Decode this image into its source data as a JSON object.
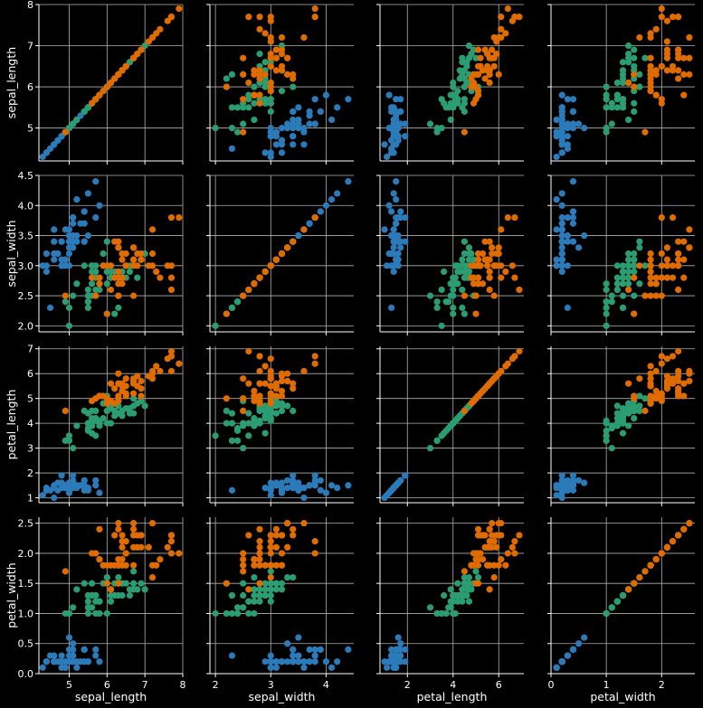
{
  "chart_data": {
    "type": "scatter",
    "title": "",
    "layout": "pairplot-4x4",
    "grid": true,
    "legend": "none",
    "variables": [
      "sepal_length",
      "sepal_width",
      "petal_length",
      "petal_width"
    ],
    "variable_labels": {
      "sepal_length": "sepal_length",
      "sepal_width": "sepal_width",
      "petal_length": "petal_length",
      "petal_width": "petal_width"
    },
    "ranges": {
      "sepal_length": [
        4.2,
        8.0
      ],
      "sepal_width": [
        1.9,
        4.5
      ],
      "petal_length": [
        0.8,
        7.1
      ],
      "petal_width": [
        0.0,
        2.6
      ]
    },
    "ticks": {
      "sepal_length": [
        5,
        6,
        7,
        8
      ],
      "sepal_width": [
        2.0,
        2.5,
        3.0,
        3.5,
        4.0,
        4.5
      ],
      "sepal_width_x": [
        2,
        3,
        4
      ],
      "petal_length": [
        1,
        2,
        3,
        4,
        5,
        6,
        7
      ],
      "petal_length_x": [
        2,
        4,
        6
      ],
      "petal_width": [
        0.0,
        0.5,
        1.0,
        1.5,
        2.0,
        2.5
      ],
      "petal_width_x": [
        0,
        1,
        2
      ]
    },
    "tick_labels": {
      "sepal_length_x": [
        "5",
        "6",
        "7",
        "8"
      ],
      "sepal_length_y": [
        "5",
        "6",
        "7",
        "8"
      ],
      "sepal_width_x": [
        "2",
        "3",
        "4"
      ],
      "sepal_width_y": [
        "2.0",
        "2.5",
        "3.0",
        "3.5",
        "4.0",
        "4.5"
      ],
      "petal_length_x": [
        "2",
        "4",
        "6"
      ],
      "petal_length_y": [
        "1",
        "2",
        "3",
        "4",
        "5",
        "6",
        "7"
      ],
      "petal_width_x": [
        "0",
        "1",
        "2"
      ],
      "petal_width_y": [
        "0.0",
        "0.5",
        "1.0",
        "1.5",
        "2.0",
        "2.5"
      ]
    },
    "group_colors": [
      "#2b7bba",
      "#2a9d72",
      "#e06c00"
    ],
    "series": [
      {
        "color": "#2b7bba",
        "points": [
          [
            5.1,
            3.5,
            1.4,
            0.2
          ],
          [
            4.9,
            3.0,
            1.4,
            0.2
          ],
          [
            4.7,
            3.2,
            1.3,
            0.2
          ],
          [
            4.6,
            3.1,
            1.5,
            0.2
          ],
          [
            5.0,
            3.6,
            1.4,
            0.2
          ],
          [
            5.4,
            3.9,
            1.7,
            0.4
          ],
          [
            4.6,
            3.4,
            1.4,
            0.3
          ],
          [
            5.0,
            3.4,
            1.5,
            0.2
          ],
          [
            4.4,
            2.9,
            1.4,
            0.2
          ],
          [
            4.9,
            3.1,
            1.5,
            0.1
          ],
          [
            5.4,
            3.7,
            1.5,
            0.2
          ],
          [
            4.8,
            3.4,
            1.6,
            0.2
          ],
          [
            4.8,
            3.0,
            1.4,
            0.1
          ],
          [
            4.3,
            3.0,
            1.1,
            0.1
          ],
          [
            5.8,
            4.0,
            1.2,
            0.2
          ],
          [
            5.7,
            4.4,
            1.5,
            0.4
          ],
          [
            5.4,
            3.9,
            1.3,
            0.4
          ],
          [
            5.1,
            3.5,
            1.4,
            0.3
          ],
          [
            5.7,
            3.8,
            1.7,
            0.3
          ],
          [
            5.1,
            3.8,
            1.5,
            0.3
          ],
          [
            5.4,
            3.4,
            1.7,
            0.2
          ],
          [
            5.1,
            3.7,
            1.5,
            0.4
          ],
          [
            4.6,
            3.6,
            1.0,
            0.2
          ],
          [
            5.1,
            3.3,
            1.7,
            0.5
          ],
          [
            4.8,
            3.4,
            1.9,
            0.2
          ],
          [
            5.0,
            3.0,
            1.6,
            0.2
          ],
          [
            5.0,
            3.4,
            1.6,
            0.4
          ],
          [
            5.2,
            3.5,
            1.5,
            0.2
          ],
          [
            5.2,
            3.4,
            1.4,
            0.2
          ],
          [
            4.7,
            3.2,
            1.6,
            0.2
          ],
          [
            4.8,
            3.1,
            1.6,
            0.2
          ],
          [
            5.4,
            3.4,
            1.5,
            0.4
          ],
          [
            5.2,
            4.1,
            1.5,
            0.1
          ],
          [
            5.5,
            4.2,
            1.4,
            0.2
          ],
          [
            4.9,
            3.1,
            1.5,
            0.2
          ],
          [
            5.0,
            3.2,
            1.2,
            0.2
          ],
          [
            5.5,
            3.5,
            1.3,
            0.2
          ],
          [
            4.9,
            3.6,
            1.4,
            0.1
          ],
          [
            4.4,
            3.0,
            1.3,
            0.2
          ],
          [
            5.1,
            3.4,
            1.5,
            0.2
          ],
          [
            5.0,
            3.5,
            1.3,
            0.3
          ],
          [
            4.5,
            2.3,
            1.3,
            0.3
          ],
          [
            4.4,
            3.2,
            1.3,
            0.2
          ],
          [
            5.0,
            3.5,
            1.6,
            0.6
          ],
          [
            5.1,
            3.8,
            1.9,
            0.4
          ],
          [
            4.8,
            3.0,
            1.4,
            0.3
          ],
          [
            5.1,
            3.8,
            1.6,
            0.2
          ],
          [
            4.6,
            3.2,
            1.4,
            0.2
          ],
          [
            5.3,
            3.7,
            1.5,
            0.2
          ],
          [
            5.0,
            3.3,
            1.4,
            0.2
          ]
        ]
      },
      {
        "color": "#2a9d72",
        "points": [
          [
            7.0,
            3.2,
            4.7,
            1.4
          ],
          [
            6.4,
            3.2,
            4.5,
            1.5
          ],
          [
            6.9,
            3.1,
            4.9,
            1.5
          ],
          [
            5.5,
            2.3,
            4.0,
            1.3
          ],
          [
            6.5,
            2.8,
            4.6,
            1.5
          ],
          [
            5.7,
            2.8,
            4.5,
            1.3
          ],
          [
            6.3,
            3.3,
            4.7,
            1.6
          ],
          [
            4.9,
            2.4,
            3.3,
            1.0
          ],
          [
            6.6,
            2.9,
            4.6,
            1.3
          ],
          [
            5.2,
            2.7,
            3.9,
            1.4
          ],
          [
            5.0,
            2.0,
            3.5,
            1.0
          ],
          [
            5.9,
            3.0,
            4.2,
            1.5
          ],
          [
            6.0,
            2.2,
            4.0,
            1.0
          ],
          [
            6.1,
            2.9,
            4.7,
            1.4
          ],
          [
            5.6,
            2.9,
            3.6,
            1.3
          ],
          [
            6.7,
            3.1,
            4.4,
            1.4
          ],
          [
            5.6,
            3.0,
            4.5,
            1.5
          ],
          [
            5.8,
            2.7,
            4.1,
            1.0
          ],
          [
            6.2,
            2.2,
            4.5,
            1.5
          ],
          [
            5.6,
            2.5,
            3.9,
            1.1
          ],
          [
            5.9,
            3.2,
            4.8,
            1.8
          ],
          [
            6.1,
            2.8,
            4.0,
            1.3
          ],
          [
            6.3,
            2.5,
            4.9,
            1.5
          ],
          [
            6.1,
            2.8,
            4.7,
            1.2
          ],
          [
            6.4,
            2.9,
            4.3,
            1.3
          ],
          [
            6.6,
            3.0,
            4.4,
            1.4
          ],
          [
            6.8,
            2.8,
            4.8,
            1.4
          ],
          [
            6.7,
            3.0,
            5.0,
            1.7
          ],
          [
            6.0,
            2.9,
            4.5,
            1.5
          ],
          [
            5.7,
            2.6,
            3.5,
            1.0
          ],
          [
            5.5,
            2.4,
            3.8,
            1.1
          ],
          [
            5.5,
            2.4,
            3.7,
            1.0
          ],
          [
            5.8,
            2.7,
            3.9,
            1.2
          ],
          [
            6.0,
            2.7,
            5.1,
            1.6
          ],
          [
            5.4,
            3.0,
            4.5,
            1.5
          ],
          [
            6.0,
            3.4,
            4.5,
            1.6
          ],
          [
            6.7,
            3.1,
            4.7,
            1.5
          ],
          [
            6.3,
            2.3,
            4.4,
            1.3
          ],
          [
            5.6,
            3.0,
            4.1,
            1.3
          ],
          [
            5.5,
            2.5,
            4.0,
            1.3
          ],
          [
            5.5,
            2.6,
            4.4,
            1.2
          ],
          [
            6.1,
            3.0,
            4.6,
            1.4
          ],
          [
            5.8,
            2.6,
            4.0,
            1.2
          ],
          [
            5.0,
            2.3,
            3.3,
            1.0
          ],
          [
            5.6,
            2.7,
            4.2,
            1.3
          ],
          [
            5.7,
            3.0,
            4.2,
            1.2
          ],
          [
            5.7,
            2.9,
            4.2,
            1.3
          ],
          [
            6.2,
            2.9,
            4.3,
            1.3
          ],
          [
            5.1,
            2.5,
            3.0,
            1.1
          ],
          [
            5.7,
            2.8,
            4.1,
            1.3
          ]
        ]
      },
      {
        "color": "#e06c00",
        "points": [
          [
            6.3,
            3.3,
            6.0,
            2.5
          ],
          [
            5.8,
            2.7,
            5.1,
            1.9
          ],
          [
            7.1,
            3.0,
            5.9,
            2.1
          ],
          [
            6.3,
            2.9,
            5.6,
            1.8
          ],
          [
            6.5,
            3.0,
            5.8,
            2.2
          ],
          [
            7.6,
            3.0,
            6.6,
            2.1
          ],
          [
            4.9,
            2.5,
            4.5,
            1.7
          ],
          [
            7.3,
            2.9,
            6.3,
            1.8
          ],
          [
            6.7,
            2.5,
            5.8,
            1.8
          ],
          [
            7.2,
            3.6,
            6.1,
            2.5
          ],
          [
            6.5,
            3.2,
            5.1,
            2.0
          ],
          [
            6.4,
            2.7,
            5.3,
            1.9
          ],
          [
            6.8,
            3.0,
            5.5,
            2.1
          ],
          [
            5.7,
            2.5,
            5.0,
            2.0
          ],
          [
            5.8,
            2.8,
            5.1,
            2.4
          ],
          [
            6.4,
            3.2,
            5.3,
            2.3
          ],
          [
            6.5,
            3.0,
            5.5,
            1.8
          ],
          [
            7.7,
            3.8,
            6.7,
            2.2
          ],
          [
            7.7,
            2.6,
            6.9,
            2.3
          ],
          [
            6.0,
            2.2,
            5.0,
            1.5
          ],
          [
            6.9,
            3.2,
            5.7,
            2.3
          ],
          [
            5.6,
            2.8,
            4.9,
            2.0
          ],
          [
            7.7,
            2.8,
            6.7,
            2.0
          ],
          [
            6.3,
            2.7,
            4.9,
            1.8
          ],
          [
            6.7,
            3.3,
            5.7,
            2.1
          ],
          [
            7.2,
            3.2,
            6.0,
            1.8
          ],
          [
            6.2,
            2.8,
            4.8,
            1.8
          ],
          [
            6.1,
            3.0,
            4.9,
            1.8
          ],
          [
            6.4,
            2.8,
            5.6,
            2.1
          ],
          [
            7.2,
            3.0,
            5.8,
            1.6
          ],
          [
            7.4,
            2.8,
            6.1,
            1.9
          ],
          [
            7.9,
            3.8,
            6.4,
            2.0
          ],
          [
            6.4,
            2.8,
            5.6,
            2.2
          ],
          [
            6.3,
            2.8,
            5.1,
            1.5
          ],
          [
            6.1,
            2.6,
            5.6,
            1.4
          ],
          [
            7.7,
            3.0,
            6.1,
            2.3
          ],
          [
            6.3,
            3.4,
            5.6,
            2.4
          ],
          [
            6.4,
            3.1,
            5.5,
            1.8
          ],
          [
            6.0,
            3.0,
            4.8,
            1.8
          ],
          [
            6.9,
            3.1,
            5.4,
            2.1
          ],
          [
            6.7,
            3.1,
            5.6,
            2.4
          ],
          [
            6.9,
            3.1,
            5.1,
            2.3
          ],
          [
            5.8,
            2.7,
            5.1,
            1.9
          ],
          [
            6.8,
            3.2,
            5.9,
            2.3
          ],
          [
            6.7,
            3.3,
            5.7,
            2.5
          ],
          [
            6.7,
            3.0,
            5.2,
            2.3
          ],
          [
            6.3,
            2.5,
            5.0,
            1.9
          ],
          [
            6.5,
            3.0,
            5.2,
            2.0
          ],
          [
            6.2,
            3.4,
            5.4,
            2.3
          ],
          [
            5.9,
            3.0,
            5.1,
            1.8
          ]
        ]
      }
    ]
  }
}
